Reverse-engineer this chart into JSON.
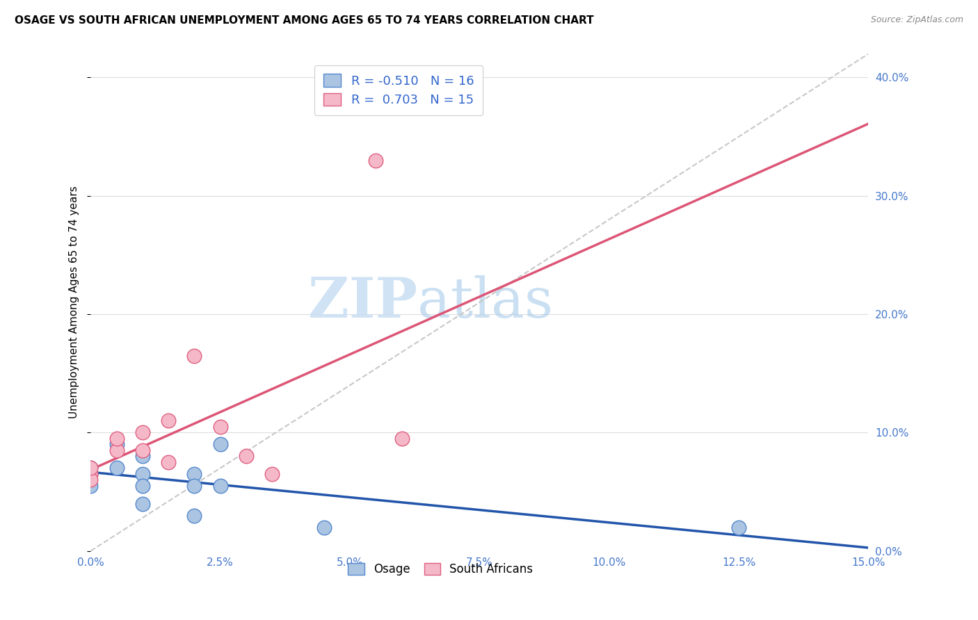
{
  "title": "OSAGE VS SOUTH AFRICAN UNEMPLOYMENT AMONG AGES 65 TO 74 YEARS CORRELATION CHART",
  "source": "Source: ZipAtlas.com",
  "ylabel": "Unemployment Among Ages 65 to 74 years",
  "xlim": [
    0.0,
    0.15
  ],
  "ylim": [
    0.0,
    0.42
  ],
  "xticks": [
    0.0,
    0.025,
    0.05,
    0.075,
    0.1,
    0.125,
    0.15
  ],
  "yticks": [
    0.0,
    0.1,
    0.2,
    0.3,
    0.4
  ],
  "osage_color": "#aac4e2",
  "osage_edge_color": "#5588cc",
  "sa_color": "#f4b8c8",
  "sa_edge_color": "#e06080",
  "trend_osage_color": "#2255aa",
  "trend_sa_color": "#dd5577",
  "diagonal_color": "#c8c8c8",
  "watermark_zip": "ZIP",
  "watermark_atlas": "atlas",
  "legend_line1": "R = -0.510   N = 16",
  "legend_line2": "R =  0.703   N = 15",
  "bottom_legend_osage": "Osage",
  "bottom_legend_sa": "South Africans",
  "osage_x": [
    0.0,
    0.0,
    0.0,
    0.005,
    0.005,
    0.01,
    0.01,
    0.01,
    0.01,
    0.02,
    0.02,
    0.02,
    0.025,
    0.025,
    0.045,
    0.125
  ],
  "osage_y": [
    0.065,
    0.07,
    0.055,
    0.09,
    0.07,
    0.08,
    0.065,
    0.055,
    0.04,
    0.065,
    0.055,
    0.03,
    0.09,
    0.055,
    0.02,
    0.02
  ],
  "sa_x": [
    0.0,
    0.0,
    0.0,
    0.005,
    0.005,
    0.01,
    0.01,
    0.015,
    0.015,
    0.02,
    0.025,
    0.03,
    0.035,
    0.06,
    0.055
  ],
  "sa_y": [
    0.065,
    0.06,
    0.07,
    0.085,
    0.095,
    0.1,
    0.085,
    0.11,
    0.075,
    0.165,
    0.105,
    0.08,
    0.065,
    0.095,
    0.33
  ]
}
